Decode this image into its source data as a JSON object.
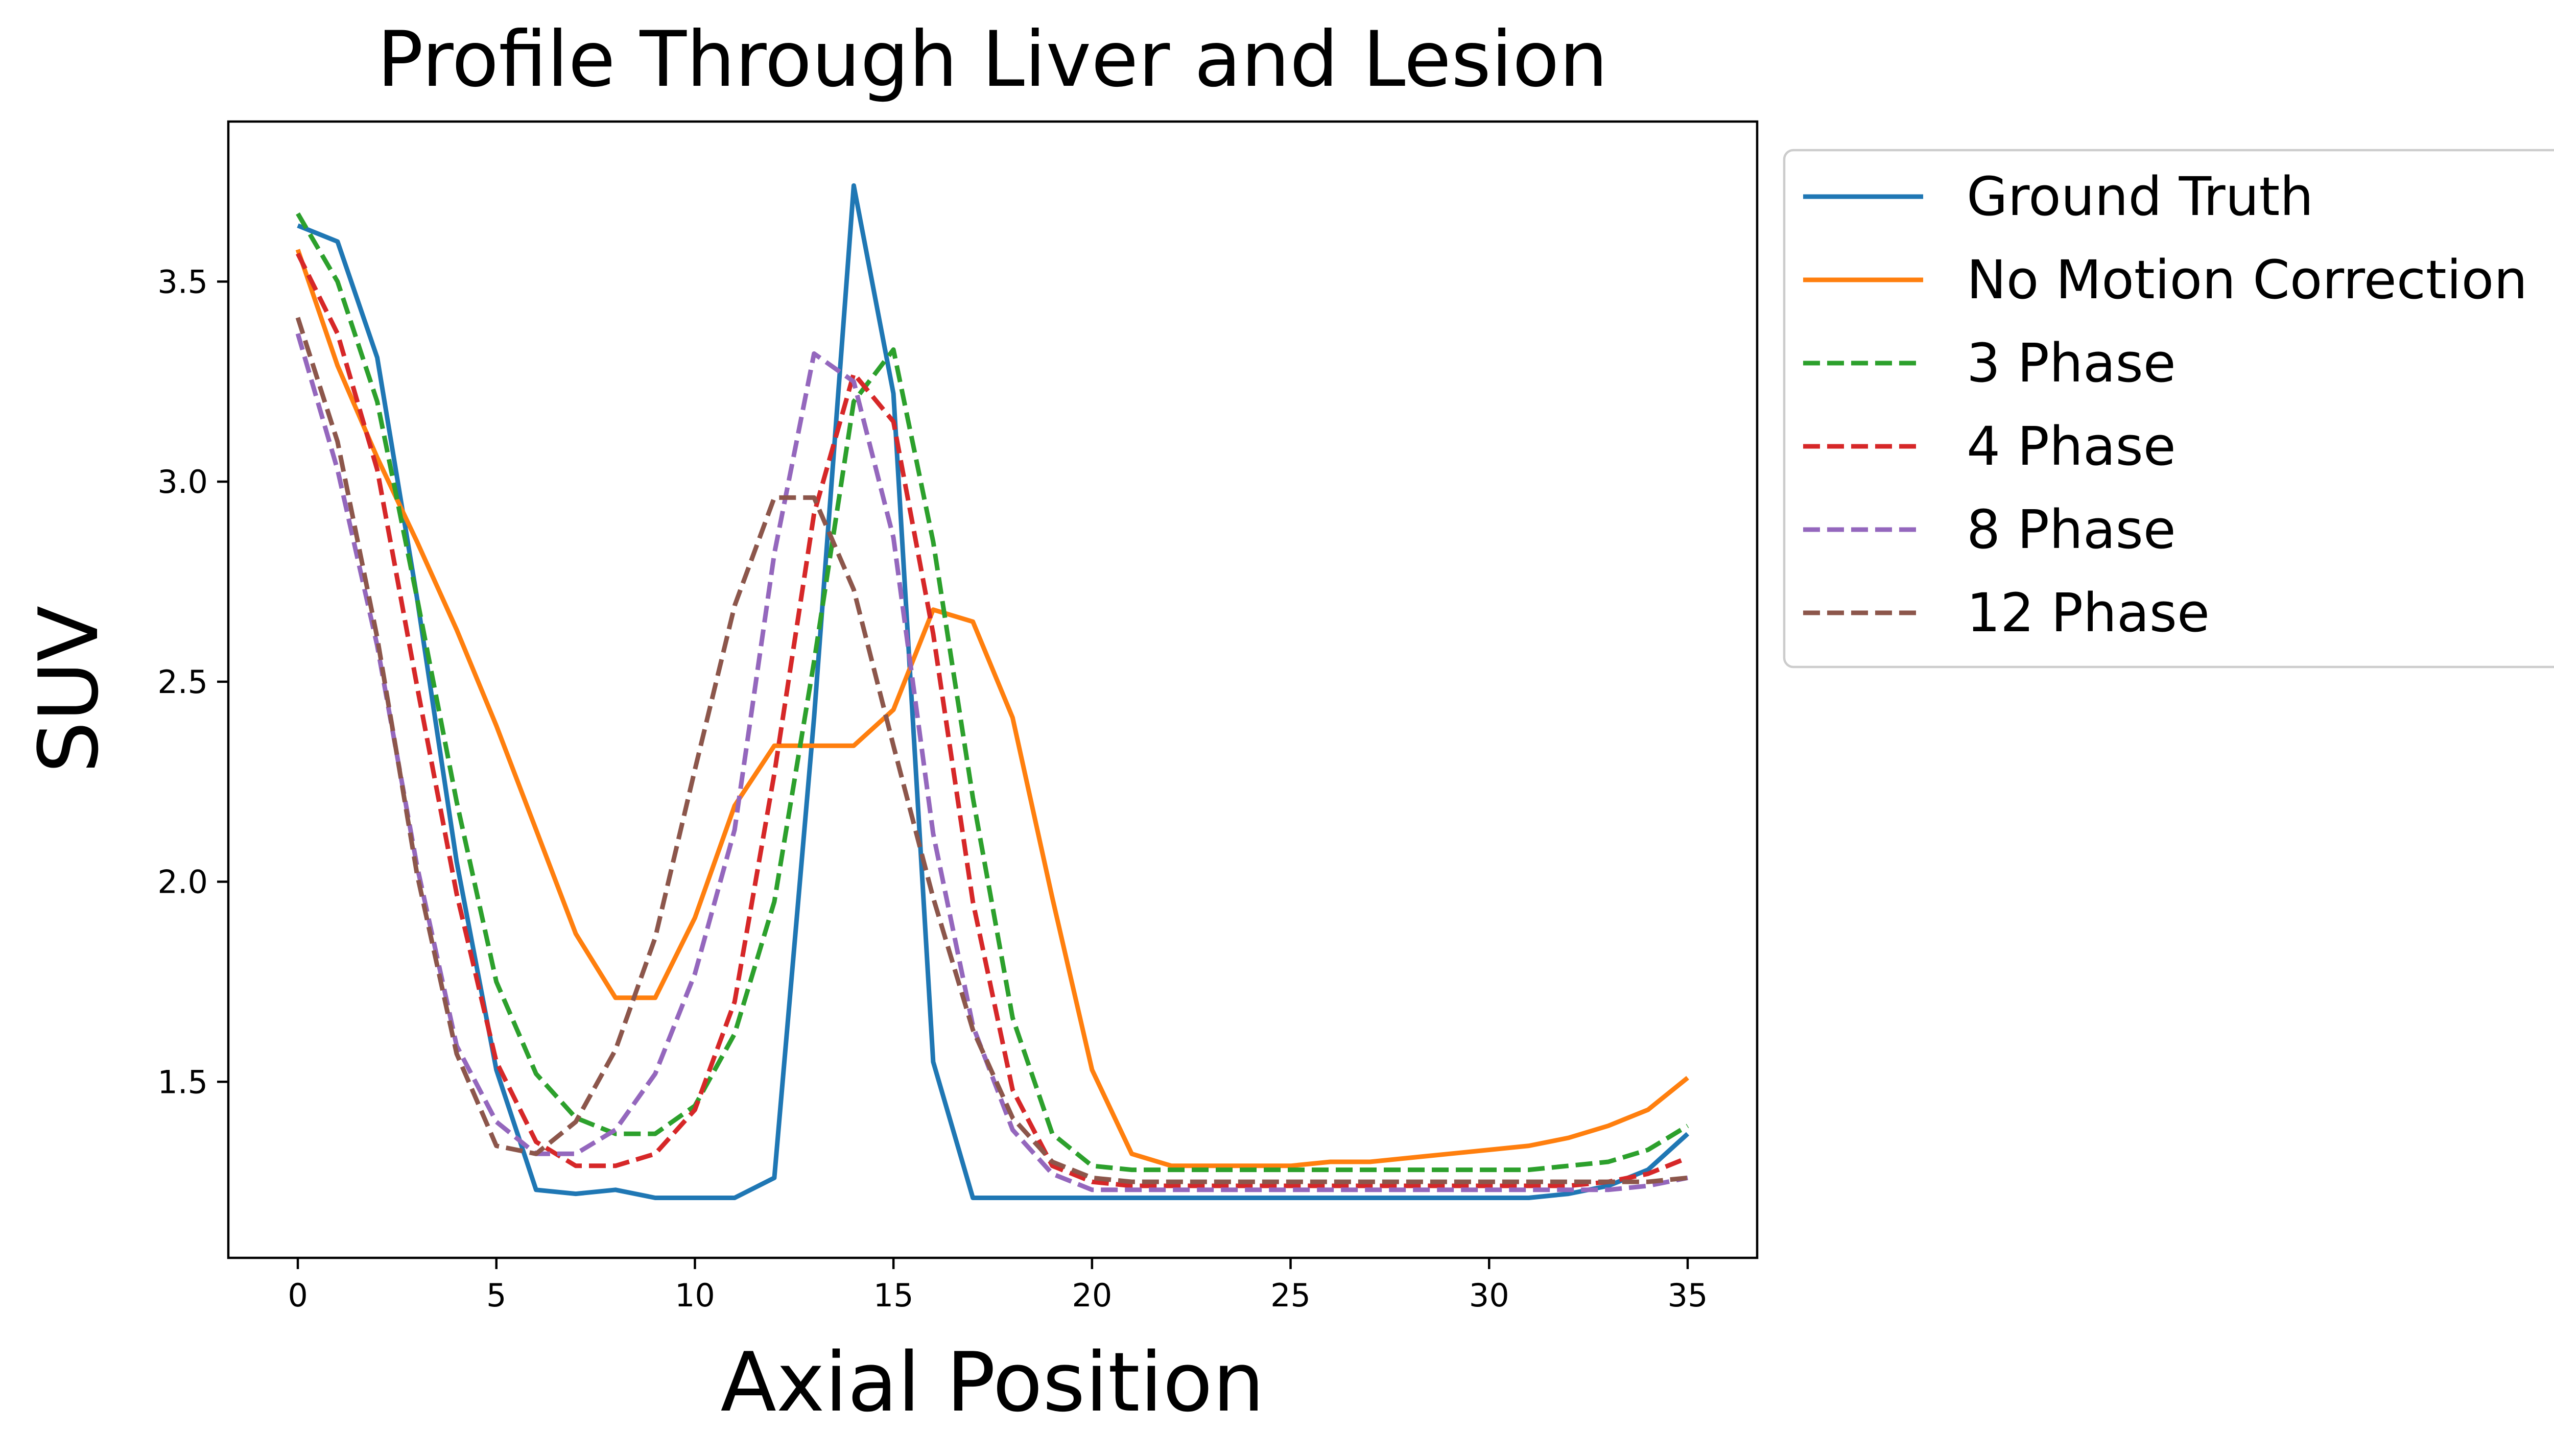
{
  "chart_data": {
    "type": "line",
    "title": "Profile Through Liver and Lesion",
    "xlabel": "Axial Position",
    "ylabel": "SUV",
    "xlim": [
      -1.75,
      36.75
    ],
    "ylim": [
      1.06,
      3.9
    ],
    "x_ticks": [
      0,
      5,
      10,
      15,
      20,
      25,
      30,
      35
    ],
    "y_ticks": [
      1.5,
      2.0,
      2.5,
      3.0,
      3.5
    ],
    "x_tick_labels": [
      "0",
      "5",
      "10",
      "15",
      "20",
      "25",
      "30",
      "35"
    ],
    "y_tick_labels": [
      "1.5",
      "2.0",
      "2.5",
      "3.0",
      "3.5"
    ],
    "grid": false,
    "legend_position": "outside-right-top",
    "x": [
      0,
      1,
      2,
      3,
      4,
      5,
      6,
      7,
      8,
      9,
      10,
      11,
      12,
      13,
      14,
      15,
      16,
      17,
      18,
      19,
      20,
      21,
      22,
      23,
      24,
      25,
      26,
      27,
      28,
      29,
      30,
      31,
      32,
      33,
      34,
      35
    ],
    "series": [
      {
        "name": "Ground Truth",
        "color": "#1f77b4",
        "dash": "solid",
        "values": [
          3.64,
          3.6,
          3.31,
          2.71,
          2.05,
          1.53,
          1.23,
          1.22,
          1.23,
          1.21,
          1.21,
          1.21,
          1.26,
          2.41,
          3.74,
          3.22,
          1.55,
          1.21,
          1.21,
          1.21,
          1.21,
          1.21,
          1.21,
          1.21,
          1.21,
          1.21,
          1.21,
          1.21,
          1.21,
          1.21,
          1.21,
          1.21,
          1.22,
          1.24,
          1.28,
          1.37
        ]
      },
      {
        "name": "No Motion Correction",
        "color": "#ff7f0e",
        "dash": "solid",
        "values": [
          3.58,
          3.29,
          3.06,
          2.85,
          2.63,
          2.39,
          2.13,
          1.87,
          1.71,
          1.71,
          1.91,
          2.19,
          2.34,
          2.34,
          2.34,
          2.43,
          2.68,
          2.65,
          2.41,
          1.96,
          1.53,
          1.32,
          1.29,
          1.29,
          1.29,
          1.29,
          1.3,
          1.3,
          1.31,
          1.32,
          1.33,
          1.34,
          1.36,
          1.39,
          1.43,
          1.51
        ]
      },
      {
        "name": "3 Phase",
        "color": "#2ca02c",
        "dash": "dashed",
        "values": [
          3.67,
          3.5,
          3.2,
          2.71,
          2.2,
          1.75,
          1.52,
          1.41,
          1.37,
          1.37,
          1.44,
          1.62,
          1.95,
          2.55,
          3.2,
          3.33,
          2.85,
          2.21,
          1.66,
          1.37,
          1.29,
          1.28,
          1.28,
          1.28,
          1.28,
          1.28,
          1.28,
          1.28,
          1.28,
          1.28,
          1.28,
          1.28,
          1.29,
          1.3,
          1.33,
          1.39
        ]
      },
      {
        "name": "4 Phase",
        "color": "#d62728",
        "dash": "dashed",
        "values": [
          3.57,
          3.37,
          3.03,
          2.49,
          1.97,
          1.55,
          1.35,
          1.29,
          1.29,
          1.32,
          1.43,
          1.7,
          2.27,
          2.92,
          3.27,
          3.15,
          2.62,
          1.95,
          1.48,
          1.29,
          1.25,
          1.24,
          1.24,
          1.24,
          1.24,
          1.24,
          1.24,
          1.24,
          1.24,
          1.24,
          1.24,
          1.24,
          1.24,
          1.25,
          1.27,
          1.31
        ]
      },
      {
        "name": "8 Phase",
        "color": "#9467bd",
        "dash": "dashed",
        "values": [
          3.37,
          3.03,
          2.59,
          2.04,
          1.59,
          1.4,
          1.32,
          1.32,
          1.38,
          1.52,
          1.77,
          2.13,
          2.82,
          3.32,
          3.25,
          2.86,
          2.12,
          1.64,
          1.38,
          1.27,
          1.23,
          1.23,
          1.23,
          1.23,
          1.23,
          1.23,
          1.23,
          1.23,
          1.23,
          1.23,
          1.23,
          1.23,
          1.23,
          1.23,
          1.24,
          1.26
        ]
      },
      {
        "name": "12 Phase",
        "color": "#8c564b",
        "dash": "dashed",
        "values": [
          3.41,
          3.1,
          2.61,
          2.02,
          1.57,
          1.34,
          1.32,
          1.4,
          1.58,
          1.86,
          2.28,
          2.69,
          2.96,
          2.96,
          2.73,
          2.34,
          1.96,
          1.63,
          1.41,
          1.3,
          1.26,
          1.25,
          1.25,
          1.25,
          1.25,
          1.25,
          1.25,
          1.25,
          1.25,
          1.25,
          1.25,
          1.25,
          1.25,
          1.25,
          1.25,
          1.26
        ]
      }
    ]
  }
}
